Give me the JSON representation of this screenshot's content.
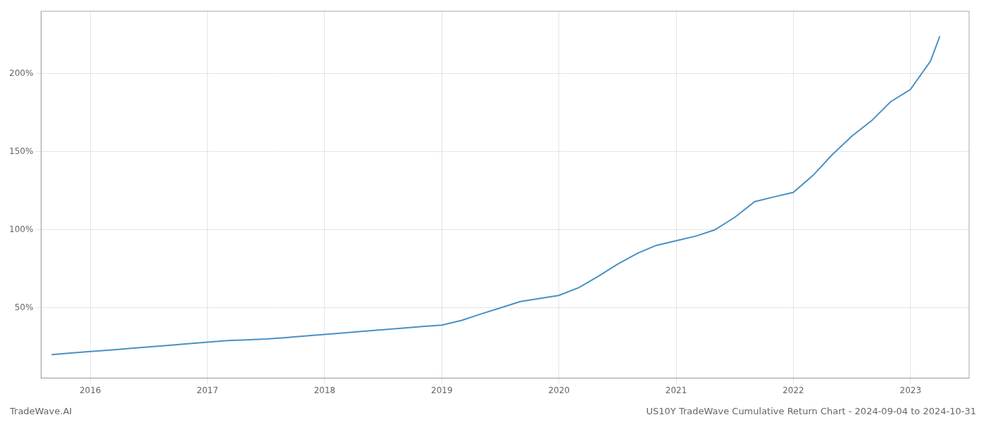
{
  "chart_data": {
    "type": "line",
    "x": [
      2015.67,
      2015.83,
      2016.0,
      2016.17,
      2016.33,
      2016.5,
      2016.67,
      2016.83,
      2017.0,
      2017.17,
      2017.33,
      2017.5,
      2017.67,
      2017.83,
      2018.0,
      2018.17,
      2018.33,
      2018.5,
      2018.67,
      2018.83,
      2019.0,
      2019.17,
      2019.33,
      2019.5,
      2019.67,
      2019.83,
      2020.0,
      2020.17,
      2020.33,
      2020.5,
      2020.67,
      2020.83,
      2021.0,
      2021.17,
      2021.33,
      2021.5,
      2021.67,
      2021.83,
      2022.0,
      2022.17,
      2022.33,
      2022.5,
      2022.67,
      2022.83,
      2023.0,
      2023.17,
      2023.25
    ],
    "values": [
      20,
      21,
      22,
      23,
      24,
      25,
      26,
      27,
      28,
      29,
      29.5,
      30,
      31,
      32,
      33,
      34,
      35,
      36,
      37,
      38,
      39,
      42,
      46,
      50,
      54,
      56,
      58,
      63,
      70,
      78,
      85,
      90,
      93,
      96,
      100,
      108,
      118,
      121,
      124,
      135,
      148,
      160,
      170,
      182,
      190,
      208,
      224
    ],
    "color": "#4a90c4",
    "xlim": [
      2015.58,
      2023.5
    ],
    "xticks": [
      2016,
      2017,
      2018,
      2019,
      2020,
      2021,
      2022,
      2023
    ],
    "ylim": [
      5,
      240
    ],
    "yticks": [
      {
        "value": 50,
        "label": "50%"
      },
      {
        "value": 100,
        "label": "100%"
      },
      {
        "value": 150,
        "label": "150%"
      },
      {
        "value": 200,
        "label": "200%"
      }
    ],
    "grid": true,
    "annotations": [
      "TradeWave.AI",
      "US10Y TradeWave Cumulative Return Chart - 2024-09-04 to 2024-10-31"
    ]
  }
}
